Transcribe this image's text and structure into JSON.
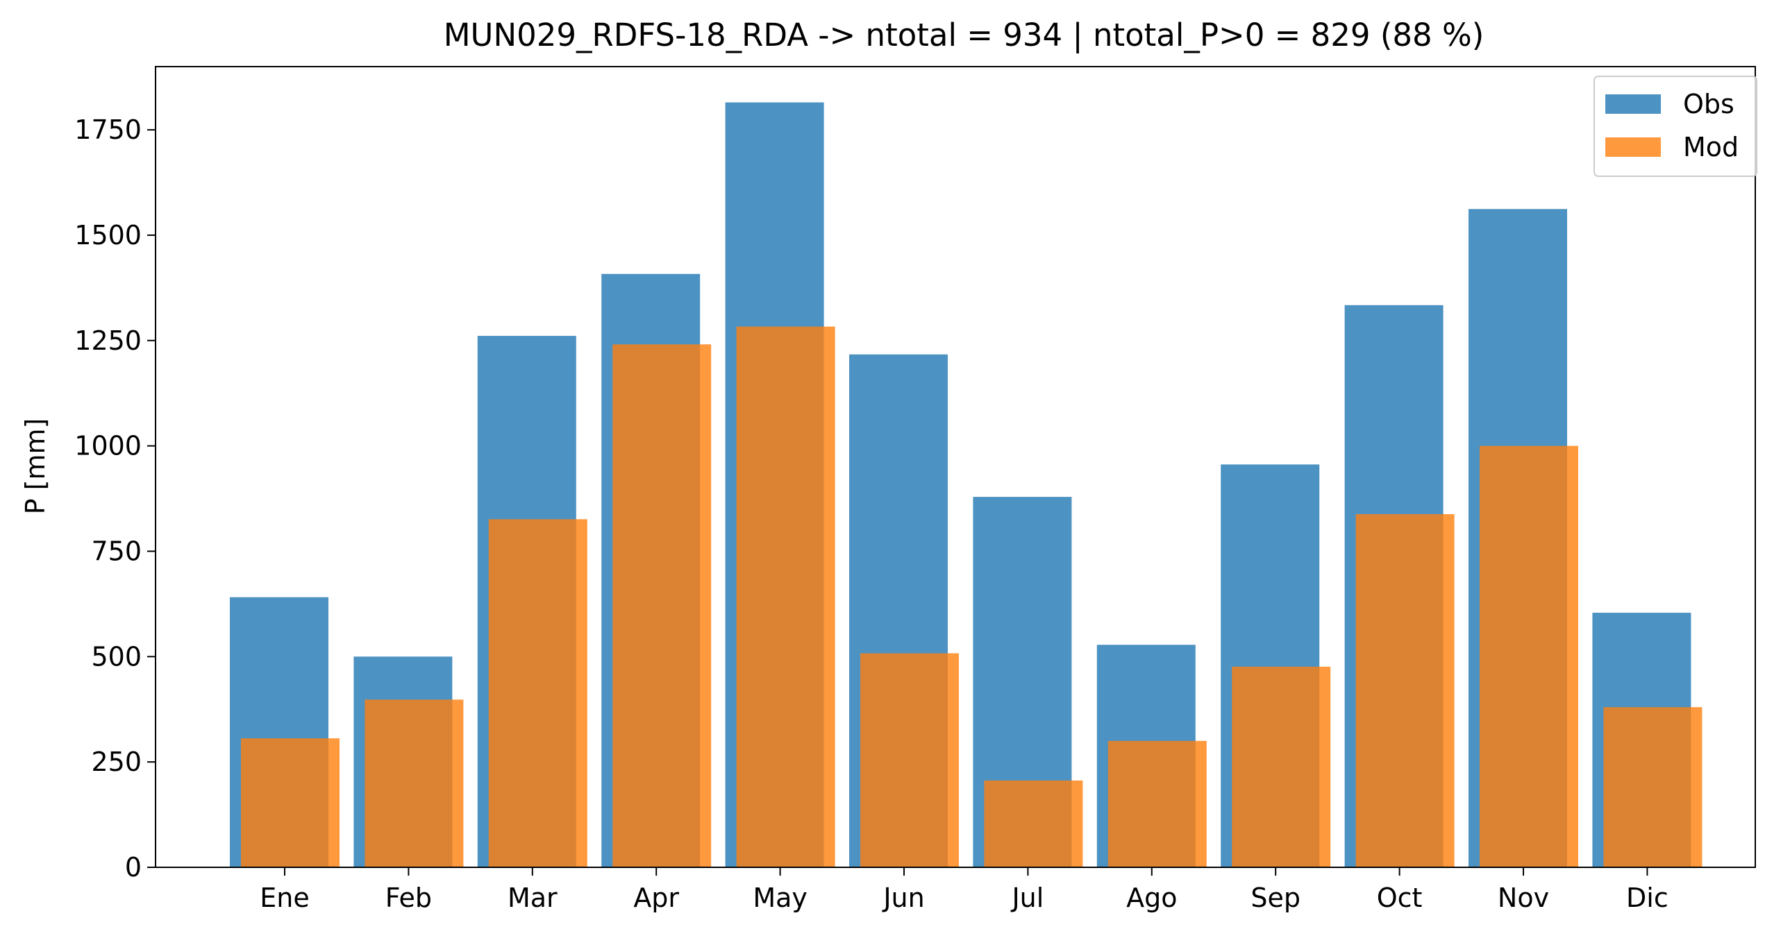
{
  "chart_data": {
    "type": "bar",
    "title": "MUN029_RDFS-18_RDA -> ntotal = 934 | ntotal_P>0 = 829 (88 %)",
    "xlabel": "",
    "ylabel": "P [mm]",
    "categories": [
      "Ene",
      "Feb",
      "Mar",
      "Apr",
      "May",
      "Jun",
      "Jul",
      "Ago",
      "Sep",
      "Oct",
      "Nov",
      "Dic"
    ],
    "series": [
      {
        "name": "Obs",
        "color": "#1f77b4",
        "opacity": 0.8,
        "values": [
          641,
          500,
          1261,
          1408,
          1815,
          1217,
          879,
          528,
          956,
          1334,
          1562,
          604
        ]
      },
      {
        "name": "Mod",
        "color": "#ff7f0e",
        "opacity": 0.8,
        "values": [
          306,
          398,
          826,
          1241,
          1283,
          508,
          206,
          300,
          476,
          838,
          1000,
          380
        ]
      }
    ],
    "ylim": [
      0,
      1900
    ],
    "yticks": [
      0,
      250,
      500,
      750,
      1000,
      1250,
      1500,
      1750
    ],
    "grid": false,
    "legend_position": "top-right"
  }
}
